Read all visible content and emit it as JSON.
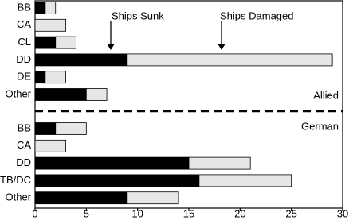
{
  "chart_data": {
    "type": "stacked-barh",
    "xlim": [
      0,
      30
    ],
    "xticks": [
      0,
      5,
      10,
      15,
      20,
      25,
      30
    ],
    "series": [
      {
        "name": "Ships Sunk",
        "color": "#000000"
      },
      {
        "name": "Ships Damaged",
        "color": "#e6e6e6"
      }
    ],
    "groups": [
      {
        "name": "Allied",
        "categories": [
          "BB",
          "CA",
          "CL",
          "DD",
          "DE",
          "Other"
        ],
        "series": [
          {
            "values": [
              1,
              0,
              2,
              9,
              1,
              5
            ]
          },
          {
            "values": [
              1,
              3,
              2,
              20,
              2,
              2
            ]
          }
        ]
      },
      {
        "name": "German",
        "categories": [
          "BB",
          "CA",
          "DD",
          "TB/DC",
          "Other"
        ],
        "series": [
          {
            "values": [
              2,
              0,
              15,
              16,
              9
            ]
          },
          {
            "values": [
              3,
              3,
              6,
              9,
              5
            ]
          }
        ]
      }
    ]
  }
}
